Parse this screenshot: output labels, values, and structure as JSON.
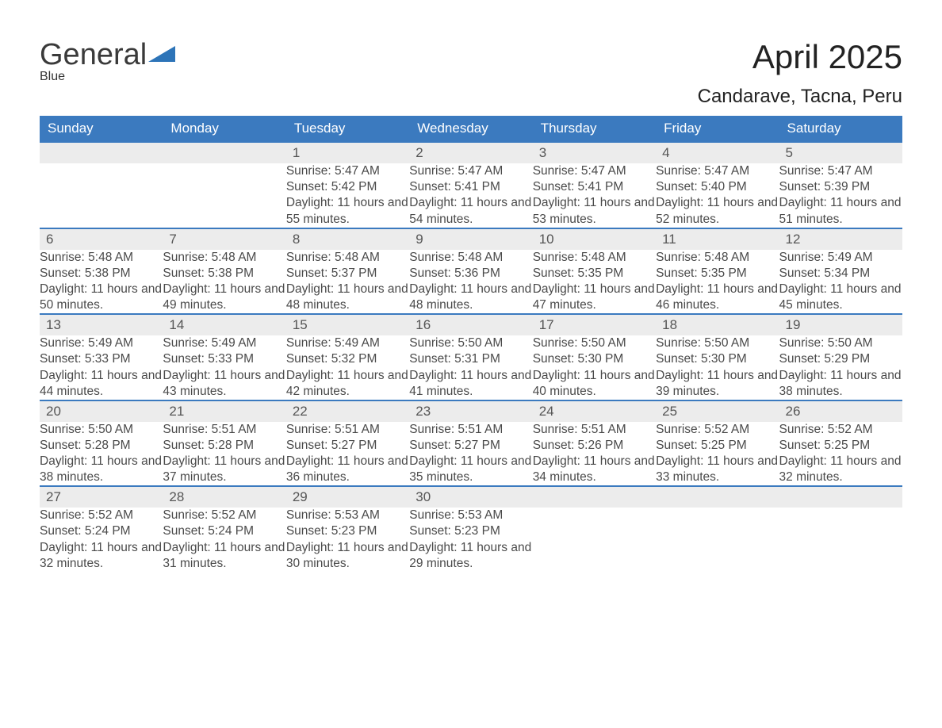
{
  "logo": {
    "word1": "General",
    "word2": "Blue"
  },
  "title": "April 2025",
  "location": "Candarave, Tacna, Peru",
  "colors": {
    "accent": "#3b7abf",
    "row_bg": "#ececec",
    "page_bg": "#ffffff",
    "text": "#333333",
    "logo_blue": "#2d74b8"
  },
  "typography": {
    "title_fontsize": 42,
    "location_fontsize": 24,
    "header_fontsize": 17,
    "cell_fontsize": 15.5,
    "font_family": "Segoe UI"
  },
  "weekdays": [
    "Sunday",
    "Monday",
    "Tuesday",
    "Wednesday",
    "Thursday",
    "Friday",
    "Saturday"
  ],
  "labels": {
    "sunrise": "Sunrise: ",
    "sunset": "Sunset: ",
    "daylight": "Daylight: "
  },
  "weeks": [
    [
      null,
      null,
      {
        "n": "1",
        "sr": "5:47 AM",
        "ss": "5:42 PM",
        "dl": "11 hours and 55 minutes."
      },
      {
        "n": "2",
        "sr": "5:47 AM",
        "ss": "5:41 PM",
        "dl": "11 hours and 54 minutes."
      },
      {
        "n": "3",
        "sr": "5:47 AM",
        "ss": "5:41 PM",
        "dl": "11 hours and 53 minutes."
      },
      {
        "n": "4",
        "sr": "5:47 AM",
        "ss": "5:40 PM",
        "dl": "11 hours and 52 minutes."
      },
      {
        "n": "5",
        "sr": "5:47 AM",
        "ss": "5:39 PM",
        "dl": "11 hours and 51 minutes."
      }
    ],
    [
      {
        "n": "6",
        "sr": "5:48 AM",
        "ss": "5:38 PM",
        "dl": "11 hours and 50 minutes."
      },
      {
        "n": "7",
        "sr": "5:48 AM",
        "ss": "5:38 PM",
        "dl": "11 hours and 49 minutes."
      },
      {
        "n": "8",
        "sr": "5:48 AM",
        "ss": "5:37 PM",
        "dl": "11 hours and 48 minutes."
      },
      {
        "n": "9",
        "sr": "5:48 AM",
        "ss": "5:36 PM",
        "dl": "11 hours and 48 minutes."
      },
      {
        "n": "10",
        "sr": "5:48 AM",
        "ss": "5:35 PM",
        "dl": "11 hours and 47 minutes."
      },
      {
        "n": "11",
        "sr": "5:48 AM",
        "ss": "5:35 PM",
        "dl": "11 hours and 46 minutes."
      },
      {
        "n": "12",
        "sr": "5:49 AM",
        "ss": "5:34 PM",
        "dl": "11 hours and 45 minutes."
      }
    ],
    [
      {
        "n": "13",
        "sr": "5:49 AM",
        "ss": "5:33 PM",
        "dl": "11 hours and 44 minutes."
      },
      {
        "n": "14",
        "sr": "5:49 AM",
        "ss": "5:33 PM",
        "dl": "11 hours and 43 minutes."
      },
      {
        "n": "15",
        "sr": "5:49 AM",
        "ss": "5:32 PM",
        "dl": "11 hours and 42 minutes."
      },
      {
        "n": "16",
        "sr": "5:50 AM",
        "ss": "5:31 PM",
        "dl": "11 hours and 41 minutes."
      },
      {
        "n": "17",
        "sr": "5:50 AM",
        "ss": "5:30 PM",
        "dl": "11 hours and 40 minutes."
      },
      {
        "n": "18",
        "sr": "5:50 AM",
        "ss": "5:30 PM",
        "dl": "11 hours and 39 minutes."
      },
      {
        "n": "19",
        "sr": "5:50 AM",
        "ss": "5:29 PM",
        "dl": "11 hours and 38 minutes."
      }
    ],
    [
      {
        "n": "20",
        "sr": "5:50 AM",
        "ss": "5:28 PM",
        "dl": "11 hours and 38 minutes."
      },
      {
        "n": "21",
        "sr": "5:51 AM",
        "ss": "5:28 PM",
        "dl": "11 hours and 37 minutes."
      },
      {
        "n": "22",
        "sr": "5:51 AM",
        "ss": "5:27 PM",
        "dl": "11 hours and 36 minutes."
      },
      {
        "n": "23",
        "sr": "5:51 AM",
        "ss": "5:27 PM",
        "dl": "11 hours and 35 minutes."
      },
      {
        "n": "24",
        "sr": "5:51 AM",
        "ss": "5:26 PM",
        "dl": "11 hours and 34 minutes."
      },
      {
        "n": "25",
        "sr": "5:52 AM",
        "ss": "5:25 PM",
        "dl": "11 hours and 33 minutes."
      },
      {
        "n": "26",
        "sr": "5:52 AM",
        "ss": "5:25 PM",
        "dl": "11 hours and 32 minutes."
      }
    ],
    [
      {
        "n": "27",
        "sr": "5:52 AM",
        "ss": "5:24 PM",
        "dl": "11 hours and 32 minutes."
      },
      {
        "n": "28",
        "sr": "5:52 AM",
        "ss": "5:24 PM",
        "dl": "11 hours and 31 minutes."
      },
      {
        "n": "29",
        "sr": "5:53 AM",
        "ss": "5:23 PM",
        "dl": "11 hours and 30 minutes."
      },
      {
        "n": "30",
        "sr": "5:53 AM",
        "ss": "5:23 PM",
        "dl": "11 hours and 29 minutes."
      },
      null,
      null,
      null
    ]
  ]
}
